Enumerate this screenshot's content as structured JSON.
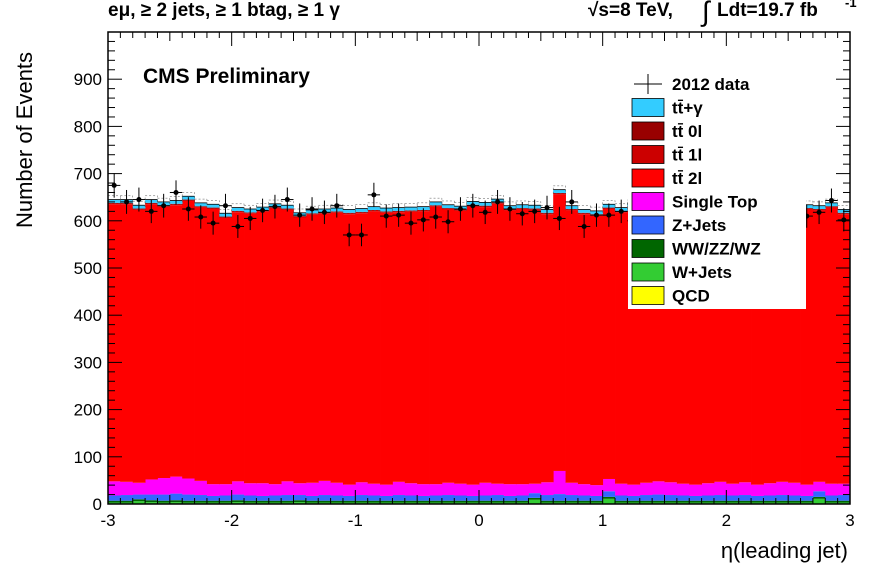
{
  "header": {
    "selection": "eμ, ≥ 2 jets, ≥ 1 btag, ≥ 1 γ",
    "energy": "√s=8 TeV,",
    "lumi_integral": "∫",
    "lumi": "Ldt=19.7 fb",
    "lumi_exp": "-1"
  },
  "chart_data": {
    "type": "bar",
    "stacked": true,
    "label": "CMS Preliminary",
    "xlabel": "η(leading jet)",
    "ylabel": "Number of Events",
    "xlim": [
      -3,
      3
    ],
    "ylim": [
      0,
      1000
    ],
    "xticks": [
      "-3",
      "-2",
      "-1",
      "0",
      "1",
      "2",
      "3"
    ],
    "yticks": [
      "0",
      "100",
      "200",
      "300",
      "400",
      "500",
      "600",
      "700",
      "800",
      "900"
    ],
    "bin_width": 0.1,
    "bin_edges_start": -3,
    "legend_position": "top-right",
    "series": [
      {
        "name": "QCD",
        "color": "#ffff00",
        "values": [
          1,
          1,
          1,
          1,
          1,
          1,
          1,
          1,
          1,
          1,
          1,
          1,
          1,
          1,
          1,
          1,
          1,
          1,
          1,
          1,
          1,
          1,
          1,
          1,
          1,
          1,
          1,
          1,
          1,
          1,
          1,
          1,
          1,
          1,
          1,
          1,
          1,
          1,
          1,
          1,
          1,
          1,
          1,
          1,
          1,
          1,
          1,
          1,
          1,
          1,
          1,
          1,
          1,
          1,
          1,
          1,
          1,
          1,
          1,
          1
        ]
      },
      {
        "name": "W+Jets",
        "color": "#33cc33",
        "values": [
          2,
          2,
          5,
          3,
          2,
          3,
          2,
          2,
          2,
          2,
          3,
          2,
          2,
          2,
          2,
          3,
          2,
          2,
          2,
          2,
          2,
          2,
          2,
          2,
          2,
          2,
          2,
          2,
          2,
          2,
          2,
          2,
          2,
          2,
          8,
          2,
          2,
          2,
          2,
          2,
          10,
          2,
          2,
          2,
          2,
          2,
          2,
          2,
          2,
          2,
          2,
          2,
          2,
          2,
          2,
          2,
          2,
          10,
          2,
          2
        ]
      },
      {
        "name": "WW/ZZ/WZ",
        "color": "#006600",
        "values": [
          4,
          4,
          4,
          4,
          4,
          4,
          4,
          4,
          4,
          4,
          4,
          4,
          4,
          4,
          4,
          4,
          4,
          4,
          4,
          4,
          4,
          4,
          4,
          4,
          4,
          4,
          4,
          4,
          4,
          4,
          4,
          4,
          4,
          4,
          4,
          4,
          4,
          4,
          4,
          4,
          4,
          4,
          4,
          4,
          4,
          4,
          4,
          4,
          4,
          4,
          4,
          4,
          4,
          4,
          4,
          4,
          4,
          4,
          4,
          4
        ]
      },
      {
        "name": "Z+Jets",
        "color": "#3366ff",
        "values": [
          11,
          12,
          10,
          12,
          13,
          14,
          13,
          12,
          10,
          11,
          12,
          11,
          10,
          11,
          12,
          11,
          10,
          12,
          11,
          10,
          12,
          11,
          10,
          12,
          11,
          10,
          11,
          12,
          11,
          10,
          11,
          12,
          10,
          11,
          10,
          12,
          14,
          12,
          11,
          10,
          12,
          11,
          10,
          12,
          13,
          12,
          11,
          10,
          11,
          12,
          11,
          12,
          10,
          11,
          12,
          11,
          10,
          12,
          11,
          12
        ]
      },
      {
        "name": "Single Top",
        "color": "#ff00ff",
        "values": [
          30,
          28,
          25,
          32,
          35,
          36,
          34,
          30,
          25,
          24,
          28,
          26,
          27,
          24,
          29,
          25,
          28,
          30,
          27,
          24,
          27,
          25,
          24,
          28,
          26,
          25,
          24,
          26,
          25,
          24,
          27,
          24,
          25,
          24,
          20,
          27,
          49,
          26,
          24,
          23,
          26,
          25,
          24,
          26,
          28,
          27,
          25,
          24,
          26,
          28,
          25,
          27,
          24,
          26,
          28,
          27,
          24,
          20,
          25,
          24
        ]
      },
      {
        "name": "tt̄ 2l",
        "color": "#ff0000",
        "values": [
          587,
          588,
          578,
          583,
          575,
          575,
          588,
          579,
          583,
          564,
          570,
          571,
          575,
          584,
          575,
          563,
          568,
          566,
          572,
          573,
          570,
          577,
          576,
          571,
          575,
          578,
          588,
          579,
          578,
          590,
          584,
          593,
          580,
          582,
          580,
          568,
          586,
          577,
          572,
          571,
          572,
          575,
          585,
          576,
          564,
          565,
          556,
          569,
          579,
          564,
          568,
          553,
          562,
          566,
          553,
          578,
          583,
          575,
          585,
          571
        ]
      },
      {
        "name": "tt̄ 1l",
        "color": "#cc0000",
        "values": [
          3,
          3,
          3,
          3,
          3,
          3,
          3,
          3,
          3,
          3,
          3,
          3,
          3,
          3,
          3,
          3,
          3,
          3,
          3,
          3,
          3,
          3,
          3,
          3,
          3,
          3,
          3,
          3,
          3,
          3,
          3,
          3,
          3,
          3,
          3,
          3,
          3,
          3,
          3,
          3,
          3,
          3,
          3,
          3,
          3,
          3,
          3,
          3,
          3,
          3,
          3,
          3,
          3,
          3,
          3,
          3,
          3,
          3,
          3,
          3
        ]
      },
      {
        "name": "tt̄ 0l",
        "color": "#990000",
        "values": [
          0,
          0,
          0,
          0,
          0,
          0,
          0,
          0,
          0,
          0,
          0,
          0,
          0,
          0,
          0,
          0,
          0,
          0,
          0,
          0,
          0,
          0,
          0,
          0,
          0,
          0,
          0,
          0,
          0,
          0,
          0,
          0,
          0,
          0,
          0,
          0,
          0,
          0,
          0,
          0,
          0,
          0,
          0,
          0,
          0,
          0,
          0,
          0,
          0,
          0,
          0,
          0,
          0,
          0,
          0,
          0,
          0,
          0,
          0,
          0
        ]
      },
      {
        "name": "tt̄+γ",
        "color": "#33ccff",
        "values": [
          7,
          7,
          7,
          7,
          7,
          7,
          7,
          7,
          7,
          7,
          7,
          7,
          7,
          7,
          7,
          7,
          7,
          7,
          7,
          7,
          7,
          7,
          7,
          7,
          7,
          7,
          7,
          7,
          7,
          7,
          7,
          7,
          7,
          7,
          7,
          7,
          7,
          7,
          7,
          7,
          7,
          7,
          7,
          7,
          7,
          7,
          7,
          7,
          7,
          7,
          7,
          7,
          7,
          7,
          7,
          7,
          7,
          7,
          7,
          7
        ]
      }
    ],
    "data": {
      "name": "2012 data",
      "values": [
        675,
        640,
        645,
        620,
        632,
        660,
        625,
        608,
        595,
        632,
        588,
        605,
        622,
        630,
        645,
        612,
        625,
        618,
        632,
        570,
        570,
        655,
        610,
        612,
        595,
        602,
        608,
        598,
        625,
        632,
        618,
        640,
        625,
        615,
        620,
        628,
        605,
        640,
        588,
        612,
        612,
        620,
        600,
        632,
        618,
        585,
        570,
        604,
        610,
        626,
        601,
        606,
        605,
        600,
        608,
        620,
        610,
        618,
        643,
        602
      ]
    }
  }
}
